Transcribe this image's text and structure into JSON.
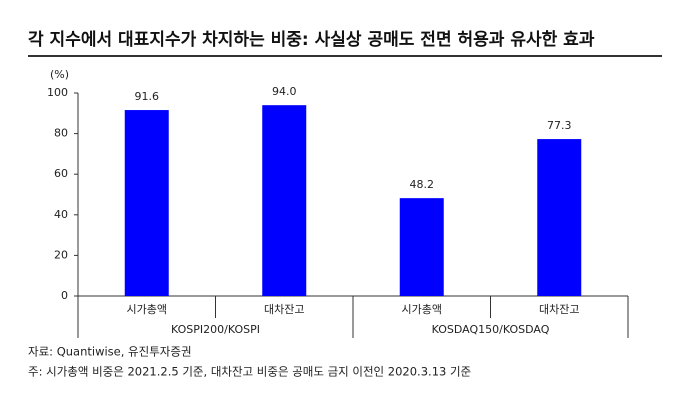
{
  "chart_data": {
    "type": "bar",
    "title": "각 지수에서 대표지수가 차지하는 비중: 사실상 공매도 전면 허용과 유사한 효과",
    "y_unit": "(%)",
    "groups": [
      {
        "name": "KOSPI200/KOSPI",
        "categories": [
          "시가총액",
          "대차잔고"
        ],
        "values": [
          91.6,
          94.0
        ],
        "value_labels": [
          "91.6",
          "94.0"
        ]
      },
      {
        "name": "KOSDAQ150/KOSDAQ",
        "categories": [
          "시가총액",
          "대차잔고"
        ],
        "values": [
          48.2,
          77.3
        ],
        "value_labels": [
          "48.2",
          "77.3"
        ]
      }
    ],
    "color": "#0000ff",
    "ylim": [
      0,
      100
    ],
    "yticks": [
      0,
      20,
      40,
      60,
      80,
      100
    ],
    "grid": false,
    "source": "자료: Quantiwise, 유진투자증권",
    "note": "주: 시가총액 비중은 2021.2.5 기준, 대차잔고 비중은 공매도 금지 이전인 2020.3.13 기준"
  }
}
